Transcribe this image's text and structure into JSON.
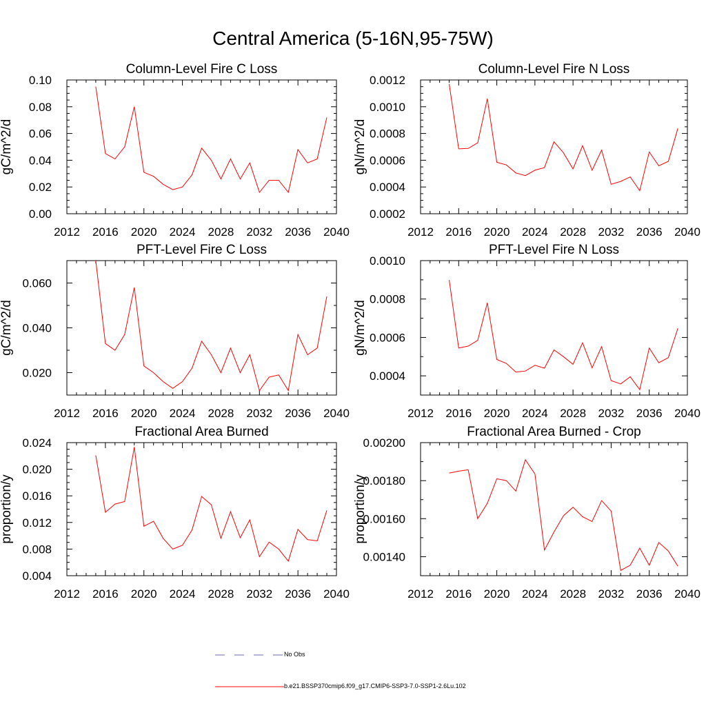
{
  "title": "Central America (5-16N,95-75W)",
  "colors": {
    "series": "#ff0000",
    "obs": "#6a6ab4",
    "axis": "#000000"
  },
  "legend": [
    {
      "label": "No Obs",
      "style": "dashed",
      "color": "#6a6ab4"
    },
    {
      "label": "b.e21.BSSP370cmip6.f09_g17.CMIP6-SSP3-7.0-SSP1-2.6Lu.102",
      "style": "solid",
      "color": "#ff0000"
    }
  ],
  "chart_data": [
    {
      "type": "line",
      "title": "Column-Level Fire C Loss",
      "ylabel": "gC/m^2/d",
      "xlim": [
        2012,
        2040
      ],
      "xticks": [
        "2012",
        "2016",
        "2020",
        "2024",
        "2028",
        "2032",
        "2036",
        "2040"
      ],
      "ylim": [
        0.0,
        0.1
      ],
      "yticks": [
        "0.00",
        "0.02",
        "0.04",
        "0.06",
        "0.08",
        "0.10"
      ],
      "x": [
        2015,
        2016,
        2017,
        2018,
        2019,
        2020,
        2021,
        2022,
        2023,
        2024,
        2025,
        2026,
        2027,
        2028,
        2029,
        2030,
        2031,
        2032,
        2033,
        2034,
        2035,
        2036,
        2037,
        2038,
        2039
      ],
      "series": [
        {
          "values": [
            0.095,
            0.045,
            0.041,
            0.05,
            0.08,
            0.031,
            0.028,
            0.022,
            0.018,
            0.02,
            0.029,
            0.049,
            0.04,
            0.026,
            0.041,
            0.026,
            0.038,
            0.016,
            0.025,
            0.025,
            0.016,
            0.048,
            0.038,
            0.041,
            0.072
          ]
        }
      ]
    },
    {
      "type": "line",
      "title": "Column-Level Fire N Loss",
      "ylabel": "gN/m^2/d",
      "xlim": [
        2012,
        2040
      ],
      "xticks": [
        "2012",
        "2016",
        "2020",
        "2024",
        "2028",
        "2032",
        "2036",
        "2040"
      ],
      "ylim": [
        0.0002,
        0.0012
      ],
      "yticks": [
        "0.0002",
        "0.0004",
        "0.0006",
        "0.0008",
        "0.0010",
        "0.0012"
      ],
      "x": [
        2015,
        2016,
        2017,
        2018,
        2019,
        2020,
        2021,
        2022,
        2023,
        2024,
        2025,
        2026,
        2027,
        2028,
        2029,
        2030,
        2031,
        2032,
        2033,
        2034,
        2035,
        2036,
        2037,
        2038,
        2039
      ],
      "series": [
        {
          "values": [
            0.00117,
            0.000685,
            0.000688,
            0.00073,
            0.00106,
            0.000585,
            0.000565,
            0.000505,
            0.000485,
            0.000525,
            0.000545,
            0.000738,
            0.000655,
            0.000535,
            0.000708,
            0.000525,
            0.000675,
            0.00042,
            0.000442,
            0.000475,
            0.000372,
            0.000662,
            0.000558,
            0.000592,
            0.000838
          ]
        }
      ]
    },
    {
      "type": "line",
      "title": "PFT-Level Fire C Loss",
      "ylabel": "gC/m^2/d",
      "xlim": [
        2012,
        2040
      ],
      "xticks": [
        "2012",
        "2016",
        "2020",
        "2024",
        "2028",
        "2032",
        "2036",
        "2040"
      ],
      "ylim": [
        0.01,
        0.07
      ],
      "yticks": [
        "",
        "0.020",
        "",
        "0.040",
        "",
        "0.060",
        ""
      ],
      "x": [
        2015,
        2016,
        2017,
        2018,
        2019,
        2020,
        2021,
        2022,
        2023,
        2024,
        2025,
        2026,
        2027,
        2028,
        2029,
        2030,
        2031,
        2032,
        2033,
        2034,
        2035,
        2036,
        2037,
        2038,
        2039
      ],
      "series": [
        {
          "values": [
            0.07,
            0.033,
            0.03,
            0.037,
            0.058,
            0.023,
            0.02,
            0.016,
            0.013,
            0.016,
            0.022,
            0.034,
            0.028,
            0.02,
            0.031,
            0.02,
            0.028,
            0.012,
            0.018,
            0.019,
            0.012,
            0.037,
            0.028,
            0.031,
            0.054
          ]
        }
      ]
    },
    {
      "type": "line",
      "title": "PFT-Level Fire N Loss",
      "ylabel": "gN/m^2/d",
      "xlim": [
        2012,
        2040
      ],
      "xticks": [
        "2012",
        "2016",
        "2020",
        "2024",
        "2028",
        "2032",
        "2036",
        "2040"
      ],
      "ylim": [
        0.0003,
        0.001
      ],
      "yticks": [
        "",
        "0.0004",
        "",
        "0.0006",
        "",
        "0.0008",
        "",
        "0.0010"
      ],
      "x": [
        2015,
        2016,
        2017,
        2018,
        2019,
        2020,
        2021,
        2022,
        2023,
        2024,
        2025,
        2026,
        2027,
        2028,
        2029,
        2030,
        2031,
        2032,
        2033,
        2034,
        2035,
        2036,
        2037,
        2038,
        2039
      ],
      "series": [
        {
          "values": [
            0.0009,
            0.000545,
            0.000555,
            0.000585,
            0.00078,
            0.000485,
            0.000465,
            0.00042,
            0.000425,
            0.000455,
            0.00044,
            0.000535,
            0.0005,
            0.00046,
            0.000572,
            0.000442,
            0.000552,
            0.000375,
            0.000358,
            0.000395,
            0.000328,
            0.000545,
            0.000468,
            0.000495,
            0.000648
          ]
        }
      ]
    },
    {
      "type": "line",
      "title": "Fractional Area Burned",
      "ylabel": "proportion/y",
      "xlim": [
        2012,
        2040
      ],
      "xticks": [
        "2012",
        "2016",
        "2020",
        "2024",
        "2028",
        "2032",
        "2036",
        "2040"
      ],
      "ylim": [
        0.003,
        0.024
      ],
      "yticks": [
        "0.004",
        "0.008",
        "0.012",
        "0.016",
        "0.020",
        "0.024"
      ],
      "x": [
        2015,
        2016,
        2017,
        2018,
        2019,
        2020,
        2021,
        2022,
        2023,
        2024,
        2025,
        2026,
        2027,
        2028,
        2029,
        2030,
        2031,
        2032,
        2033,
        2034,
        2035,
        2036,
        2037,
        2038,
        2039
      ],
      "series": [
        {
          "values": [
            0.022,
            0.013,
            0.0143,
            0.0147,
            0.0233,
            0.0108,
            0.0116,
            0.0089,
            0.0072,
            0.0078,
            0.0102,
            0.0155,
            0.0142,
            0.0089,
            0.0131,
            0.009,
            0.0118,
            0.006,
            0.0083,
            0.0072,
            0.0053,
            0.0103,
            0.0087,
            0.0085,
            0.0133
          ]
        }
      ]
    },
    {
      "type": "line",
      "title": "Fractional Area Burned - Crop",
      "ylabel": "proportion/y",
      "xlim": [
        2012,
        2040
      ],
      "xticks": [
        "2012",
        "2016",
        "2020",
        "2024",
        "2028",
        "2032",
        "2036",
        "2040"
      ],
      "ylim": [
        0.0013,
        0.002
      ],
      "yticks": [
        "",
        "0.00140",
        "",
        "0.00160",
        "",
        "0.00180",
        "",
        "0.00200"
      ],
      "x": [
        2015,
        2016,
        2017,
        2018,
        2019,
        2020,
        2021,
        2022,
        2023,
        2024,
        2025,
        2026,
        2027,
        2028,
        2029,
        2030,
        2031,
        2032,
        2033,
        2034,
        2035,
        2036,
        2037,
        2038,
        2039
      ],
      "series": [
        {
          "values": [
            0.00184,
            0.00185,
            0.001857,
            0.0016,
            0.00168,
            0.00181,
            0.0018,
            0.001745,
            0.00191,
            0.001835,
            0.001435,
            0.00153,
            0.001615,
            0.00166,
            0.00161,
            0.001585,
            0.001695,
            0.00164,
            0.001328,
            0.001355,
            0.001445,
            0.001355,
            0.001475,
            0.00143,
            0.00135
          ]
        }
      ]
    }
  ]
}
